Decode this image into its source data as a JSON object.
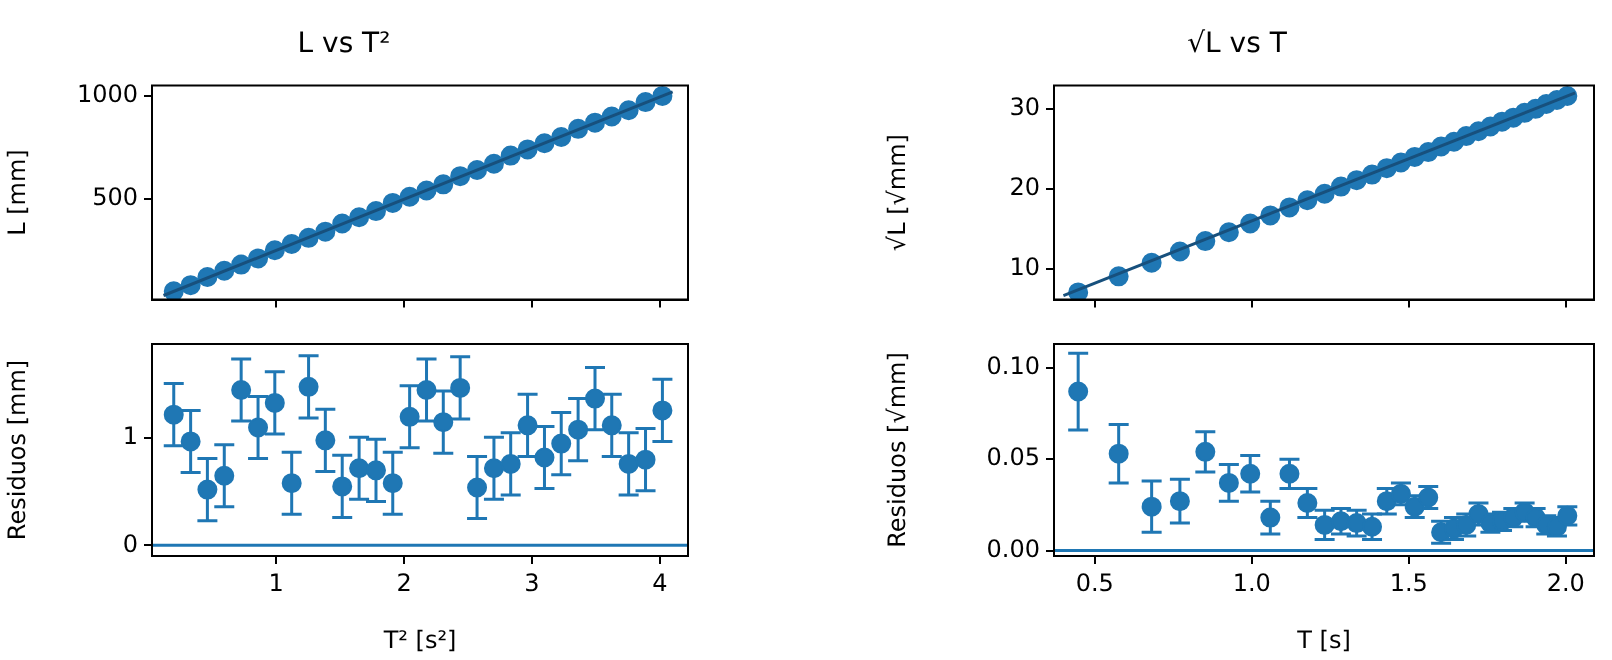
{
  "chart_data": [
    {
      "type": "scatter",
      "title": "L vs T²",
      "ylabel": "L [mm]",
      "marker": "circle",
      "tick_labels": "y",
      "x": [
        0.2,
        0.332,
        0.463,
        0.595,
        0.727,
        0.859,
        0.99,
        1.122,
        1.254,
        1.385,
        1.517,
        1.649,
        1.781,
        1.912,
        2.044,
        2.176,
        2.307,
        2.439,
        2.571,
        2.703,
        2.834,
        2.966,
        3.098,
        3.229,
        3.361,
        3.493,
        3.624,
        3.756,
        3.888,
        4.02
      ],
      "xlim": [
        0.03,
        4.22
      ],
      "xticks": [
        1,
        2,
        3,
        4
      ],
      "ylim": [
        10,
        1050
      ],
      "yticks": [
        500,
        1000
      ],
      "series": [
        {
          "color": "#1f77b4",
          "values": [
            50,
            80,
            120,
            150,
            180,
            210,
            250,
            280,
            310,
            340,
            380,
            410,
            440,
            480,
            510,
            540,
            570,
            610,
            640,
            670,
            710,
            740,
            770,
            800,
            840,
            870,
            900,
            930,
            970,
            1000
          ]
        },
        {
          "type": "line",
          "marker": "none",
          "color": "#17507d",
          "x": [
            0.12,
            4.1
          ],
          "values": [
            30,
            1020
          ]
        }
      ]
    },
    {
      "type": "scatter",
      "xlabel": "T² [s²]",
      "ylabel": "Residuos [mm]",
      "marker": "circle",
      "x": [
        0.2,
        0.332,
        0.463,
        0.595,
        0.727,
        0.859,
        0.99,
        1.122,
        1.254,
        1.385,
        1.517,
        1.649,
        1.781,
        1.912,
        2.044,
        2.176,
        2.307,
        2.439,
        2.571,
        2.703,
        2.834,
        2.966,
        3.098,
        3.229,
        3.361,
        3.493,
        3.624,
        3.756,
        3.888,
        4.02
      ],
      "xlim": [
        0.03,
        4.22
      ],
      "xticks": [
        1,
        2,
        3,
        4
      ],
      "ylim": [
        -0.1,
        1.88
      ],
      "yticks": [
        0,
        1
      ],
      "ref_lines": [
        {
          "axis": "y",
          "value": 0,
          "color": "#1f77b4"
        }
      ],
      "series": [
        {
          "color": "#1f77b4",
          "values": [
            1.22,
            0.97,
            0.52,
            0.65,
            1.45,
            1.1,
            1.33,
            0.58,
            1.48,
            0.98,
            0.55,
            0.72,
            0.7,
            0.58,
            1.2,
            1.45,
            1.15,
            1.47,
            0.54,
            0.72,
            0.76,
            1.12,
            0.82,
            0.95,
            1.08,
            1.37,
            1.12,
            0.76,
            0.8,
            1.26
          ],
          "errors": [
            0.29,
            0.29,
            0.29,
            0.29,
            0.29,
            0.29,
            0.29,
            0.29,
            0.29,
            0.29,
            0.29,
            0.29,
            0.29,
            0.29,
            0.29,
            0.29,
            0.29,
            0.29,
            0.29,
            0.29,
            0.29,
            0.29,
            0.29,
            0.29,
            0.29,
            0.29,
            0.29,
            0.29,
            0.29,
            0.29
          ]
        }
      ]
    },
    {
      "type": "scatter",
      "title": "√L vs T",
      "ylabel": "√L [√mm]",
      "marker": "circle",
      "tick_labels": "y",
      "x": [
        0.447,
        0.576,
        0.681,
        0.771,
        0.852,
        0.927,
        0.995,
        1.059,
        1.12,
        1.177,
        1.232,
        1.284,
        1.334,
        1.383,
        1.43,
        1.475,
        1.519,
        1.562,
        1.603,
        1.644,
        1.683,
        1.722,
        1.76,
        1.797,
        1.833,
        1.869,
        1.904,
        1.938,
        1.972,
        2.005
      ],
      "xlim": [
        0.37,
        2.09
      ],
      "xticks": [
        0.5,
        1,
        1.5,
        2
      ],
      "ylim": [
        6.2,
        32.9
      ],
      "yticks": [
        10,
        20,
        30
      ],
      "series": [
        {
          "color": "#1f77b4",
          "values": [
            7.1,
            9.1,
            10.8,
            12.2,
            13.5,
            14.6,
            15.7,
            16.7,
            17.7,
            18.6,
            19.4,
            20.3,
            21.1,
            21.8,
            22.6,
            23.3,
            24,
            24.6,
            25.3,
            25.9,
            26.6,
            27.2,
            27.8,
            28.4,
            28.9,
            29.5,
            30,
            30.6,
            31.1,
            31.6
          ]
        },
        {
          "type": "line",
          "marker": "none",
          "color": "#17507d",
          "x": [
            0.4,
            2.03
          ],
          "values": [
            6.7,
            32
          ]
        }
      ]
    },
    {
      "type": "scatter",
      "xlabel": "T [s]",
      "ylabel": "Residuos [√mm]",
      "marker": "circle",
      "x": [
        0.447,
        0.576,
        0.681,
        0.771,
        0.852,
        0.927,
        0.995,
        1.059,
        1.12,
        1.177,
        1.232,
        1.284,
        1.334,
        1.383,
        1.43,
        1.475,
        1.519,
        1.562,
        1.603,
        1.644,
        1.683,
        1.722,
        1.76,
        1.797,
        1.833,
        1.869,
        1.904,
        1.938,
        1.972,
        2.005
      ],
      "xlim": [
        0.37,
        2.09
      ],
      "xticks": [
        {
          "value": 0.5,
          "label": "0.5"
        },
        {
          "value": 1,
          "label": "1.0"
        },
        {
          "value": 1.5,
          "label": "1.5"
        },
        {
          "value": 2,
          "label": "2.0"
        }
      ],
      "ylim": [
        -0.003,
        0.113
      ],
      "yticks": [
        {
          "value": 0,
          "label": "0.00"
        },
        {
          "value": 0.05,
          "label": "0.05"
        },
        {
          "value": 0.1,
          "label": "0.10"
        }
      ],
      "ref_lines": [
        {
          "axis": "y",
          "value": 0,
          "color": "#1f77b4"
        }
      ],
      "series": [
        {
          "color": "#1f77b4",
          "values": [
            0.087,
            0.053,
            0.024,
            0.027,
            0.054,
            0.037,
            0.042,
            0.018,
            0.042,
            0.026,
            0.014,
            0.016,
            0.015,
            0.013,
            0.027,
            0.031,
            0.024,
            0.029,
            0.01,
            0.012,
            0.014,
            0.02,
            0.015,
            0.016,
            0.018,
            0.021,
            0.018,
            0.014,
            0.013,
            0.019
          ],
          "errors": [
            0.021,
            0.016,
            0.014,
            0.012,
            0.011,
            0.01,
            0.01,
            0.009,
            0.008,
            0.008,
            0.008,
            0.007,
            0.007,
            0.007,
            0.007,
            0.006,
            0.006,
            0.006,
            0.006,
            0.006,
            0.006,
            0.006,
            0.005,
            0.005,
            0.005,
            0.005,
            0.005,
            0.005,
            0.005,
            0.005
          ]
        }
      ]
    }
  ]
}
